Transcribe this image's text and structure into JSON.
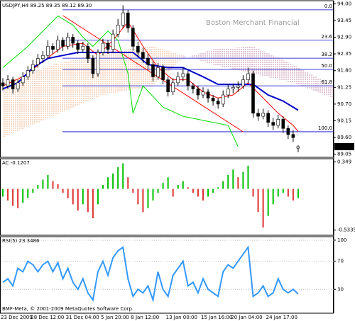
{
  "chart_data": [
    {
      "type": "candlestick",
      "title": "USDJPY,H4  89.25 89.35 89.12 89.30",
      "watermark": "Boston Merchant Financial",
      "categories": [
        "23 Dec 2009",
        null,
        null,
        null,
        null,
        null,
        "28 Dec 12:00",
        null,
        null,
        null,
        null,
        null,
        null,
        "31 Dec 04:00",
        null,
        null,
        null,
        null,
        null,
        null,
        "5 Jan 20:00",
        null,
        null,
        null,
        null,
        null,
        "8 Jan 12:00",
        null,
        null,
        null,
        null,
        null,
        null,
        "13 Jan 00:00",
        null,
        null,
        null,
        null,
        null,
        null,
        "15 Jan 16:00",
        null,
        null,
        null,
        null,
        null,
        "20 Jan 04:00",
        null,
        null,
        null,
        null,
        null,
        null,
        "24 Jan 17:00",
        null,
        null,
        null,
        null,
        null,
        null
      ],
      "ohlc": [
        [
          91.4,
          91.55,
          91.15,
          91.3
        ],
        [
          91.3,
          91.65,
          91.2,
          91.5
        ],
        [
          91.5,
          91.6,
          91.05,
          91.2
        ],
        [
          91.2,
          91.5,
          91.1,
          91.4
        ],
        [
          91.4,
          91.75,
          91.3,
          91.6
        ],
        [
          91.6,
          91.95,
          91.5,
          91.8
        ],
        [
          91.8,
          92.15,
          91.7,
          92.0
        ],
        [
          92.0,
          92.35,
          91.9,
          92.2
        ],
        [
          92.2,
          92.45,
          92.05,
          92.3
        ],
        [
          92.3,
          92.8,
          92.2,
          92.6
        ],
        [
          92.6,
          92.7,
          92.35,
          92.5
        ],
        [
          92.5,
          92.95,
          92.4,
          92.8
        ],
        [
          92.8,
          92.9,
          92.45,
          92.6
        ],
        [
          92.6,
          93.05,
          92.5,
          92.9
        ],
        [
          92.9,
          93.0,
          92.55,
          92.7
        ],
        [
          92.7,
          92.8,
          92.35,
          92.5
        ],
        [
          92.5,
          92.75,
          92.4,
          92.6
        ],
        [
          92.6,
          92.7,
          92.05,
          92.2
        ],
        [
          92.2,
          92.3,
          91.55,
          91.7
        ],
        [
          91.7,
          92.5,
          91.6,
          92.4
        ],
        [
          92.4,
          92.85,
          92.3,
          92.7
        ],
        [
          92.7,
          92.8,
          92.35,
          92.5
        ],
        [
          92.5,
          93.15,
          92.4,
          93.0
        ],
        [
          93.0,
          93.5,
          92.9,
          93.3
        ],
        [
          93.3,
          93.95,
          93.2,
          93.7
        ],
        [
          93.7,
          93.8,
          93.05,
          93.2
        ],
        [
          93.2,
          93.3,
          92.45,
          92.6
        ],
        [
          92.6,
          92.75,
          92.25,
          92.4
        ],
        [
          92.4,
          92.55,
          92.05,
          92.2
        ],
        [
          92.2,
          92.35,
          91.85,
          92.0
        ],
        [
          92.0,
          92.1,
          91.45,
          91.6
        ],
        [
          91.6,
          92.05,
          91.5,
          91.9
        ],
        [
          91.9,
          92.0,
          91.35,
          91.5
        ],
        [
          91.5,
          91.6,
          90.95,
          91.1
        ],
        [
          91.1,
          91.55,
          91.0,
          91.4
        ],
        [
          91.4,
          91.75,
          91.3,
          91.6
        ],
        [
          91.6,
          91.9,
          91.45,
          91.7
        ],
        [
          91.7,
          91.8,
          91.15,
          91.3
        ],
        [
          91.3,
          91.4,
          91.05,
          91.2
        ],
        [
          91.2,
          91.3,
          90.85,
          91.0
        ],
        [
          91.0,
          91.25,
          90.9,
          91.1
        ],
        [
          91.1,
          91.2,
          90.75,
          90.9
        ],
        [
          90.9,
          91.0,
          90.65,
          90.8
        ],
        [
          90.8,
          90.9,
          90.55,
          90.7
        ],
        [
          90.7,
          91.15,
          90.6,
          91.0
        ],
        [
          91.0,
          91.35,
          90.9,
          91.2
        ],
        [
          91.2,
          91.35,
          91.05,
          91.25
        ],
        [
          91.25,
          91.45,
          91.1,
          91.3
        ],
        [
          91.3,
          91.65,
          91.2,
          91.5
        ],
        [
          91.5,
          91.9,
          91.4,
          91.7
        ],
        [
          91.7,
          91.8,
          90.25,
          90.4
        ],
        [
          90.4,
          90.55,
          90.15,
          90.3
        ],
        [
          90.3,
          90.55,
          90.2,
          90.4
        ],
        [
          90.4,
          90.5,
          89.95,
          90.1
        ],
        [
          90.1,
          90.25,
          89.85,
          90.0
        ],
        [
          90.0,
          90.35,
          89.9,
          90.2
        ],
        [
          90.2,
          90.3,
          89.75,
          89.9
        ],
        [
          89.9,
          90.0,
          89.55,
          89.7
        ],
        [
          89.7,
          89.85,
          89.45,
          89.6
        ],
        [
          89.25,
          89.35,
          89.12,
          89.3
        ]
      ],
      "candle_colors": {
        "up": "#ffffff",
        "down": "#000000",
        "edge": "#000000"
      },
      "lines": [
        {
          "color": "#00dd00",
          "x": [
            0,
            5,
            11,
            14,
            16,
            18,
            21,
            23,
            25,
            26,
            28,
            32,
            36,
            39,
            42,
            45,
            47
          ],
          "values": [
            91.9,
            92.6,
            93.6,
            93.3,
            92.9,
            92.6,
            93.1,
            92.8,
            91.7,
            90.4,
            91.3,
            90.6,
            90.3,
            90.2,
            90.1,
            90.0,
            89.3
          ]
        },
        {
          "color": "#ff0000",
          "x": [
            0,
            4,
            8,
            12,
            16,
            19,
            22,
            25,
            28,
            31,
            34,
            37,
            40,
            43,
            46,
            49,
            52,
            55,
            58,
            59
          ],
          "values": [
            91.3,
            91.6,
            92.1,
            92.6,
            92.7,
            92.3,
            92.8,
            93.4,
            92.6,
            91.9,
            91.5,
            91.5,
            91.1,
            90.9,
            91.0,
            91.4,
            90.9,
            90.4,
            90.0,
            89.8
          ]
        },
        {
          "color": "#0000cc",
          "x": [
            0,
            3,
            6,
            9,
            12,
            15,
            18,
            22,
            26,
            29,
            33,
            36,
            40,
            43,
            47,
            50,
            53,
            56,
            59
          ],
          "values": [
            91.2,
            91.4,
            91.9,
            92.2,
            92.3,
            92.4,
            92.4,
            92.4,
            92.4,
            92.0,
            91.9,
            91.9,
            91.6,
            91.35,
            91.35,
            91.35,
            91.0,
            90.8,
            90.5
          ]
        }
      ],
      "cloud": {
        "x": [
          0,
          10,
          20,
          30,
          36,
          42,
          50,
          58,
          66
        ],
        "span_a": [
          91.4,
          92.0,
          92.4,
          92.6,
          92.3,
          92.0,
          91.7,
          91.4,
          90.9
        ],
        "span_b": [
          89.6,
          90.3,
          91.0,
          91.3,
          92.2,
          92.5,
          92.6,
          92.0,
          91.3
        ],
        "colors": {
          "up": "#e8a070",
          "down": "#b07090"
        }
      },
      "trendline": {
        "color": "#ff0000",
        "x": [
          12,
          48
        ],
        "values": [
          93.61,
          89.79
        ]
      },
      "fib_color": "#0000cc",
      "fib_levels": [
        {
          "value": 93.8,
          "label": "0.0"
        },
        {
          "value": 92.8,
          "label": "23.6"
        },
        {
          "value": 92.21,
          "label": "38.2"
        },
        {
          "value": 91.84,
          "label": "50.0"
        },
        {
          "value": 91.3,
          "label": "61.8"
        },
        {
          "value": 89.79,
          "label": "100.0"
        }
      ],
      "last_price": {
        "value": 89.3,
        "label": "89.30"
      },
      "ylim": [
        88.95,
        94.1
      ],
      "yticks": [
        {
          "value": 94,
          "label": "94.00"
        },
        {
          "value": 93.45,
          "label": "93.45"
        },
        {
          "value": 92.9,
          "label": "92.90"
        },
        {
          "value": 92.35,
          "label": "92.35"
        },
        {
          "value": 91.8,
          "label": "91.80"
        },
        {
          "value": 91.25,
          "label": "91.25"
        },
        {
          "value": 90.7,
          "label": "90.70"
        },
        {
          "value": 90.15,
          "label": "90.15"
        },
        {
          "value": 89.6,
          "label": "89.60"
        },
        {
          "value": 89.05,
          "label": "89.05"
        }
      ]
    },
    {
      "type": "histogram",
      "title": "AC -0.1207",
      "values": [
        -0.1,
        -0.15,
        -0.22,
        -0.25,
        -0.18,
        -0.12,
        -0.05,
        0.05,
        0.12,
        0.18,
        0.1,
        0.06,
        -0.05,
        -0.12,
        -0.2,
        -0.28,
        -0.2,
        -0.3,
        -0.38,
        -0.2,
        0.05,
        0.15,
        0.2,
        0.28,
        0.33,
        0.15,
        -0.05,
        -0.2,
        -0.3,
        -0.25,
        -0.15,
        -0.05,
        0.08,
        0.15,
        -0.1,
        0.05,
        0.1,
        0.02,
        -0.05,
        -0.1,
        -0.15,
        -0.1,
        -0.05,
        0.02,
        0.1,
        0.18,
        0.25,
        0.15,
        0.22,
        0.3,
        -0.1,
        -0.3,
        -0.5,
        -0.35,
        -0.2,
        -0.1,
        -0.05,
        -0.1,
        -0.15,
        -0.1207
      ],
      "colors": {
        "up": "#00c000",
        "down": "#e03030"
      },
      "ylim": [
        -0.6,
        0.39
      ],
      "yticks": [
        0.349,
        -0.5335
      ]
    },
    {
      "type": "line",
      "title": "RSI(5) 23.3486",
      "annotation": "BMF-Meta, © 2001-2009 MetaQuotes Software Corp.",
      "values": [
        40,
        45,
        35,
        60,
        55,
        70,
        65,
        55,
        65,
        70,
        55,
        68,
        45,
        60,
        40,
        30,
        45,
        25,
        15,
        55,
        70,
        50,
        75,
        85,
        90,
        45,
        20,
        30,
        25,
        35,
        15,
        55,
        30,
        20,
        50,
        60,
        70,
        35,
        40,
        25,
        45,
        30,
        25,
        20,
        55,
        65,
        60,
        70,
        80,
        90,
        20,
        25,
        35,
        20,
        25,
        45,
        30,
        25,
        30,
        23.3486
      ],
      "color": "#3399ff",
      "ylim": [
        -4,
        105
      ],
      "yticks": [
        100,
        70,
        30
      ],
      "grid": true
    }
  ]
}
